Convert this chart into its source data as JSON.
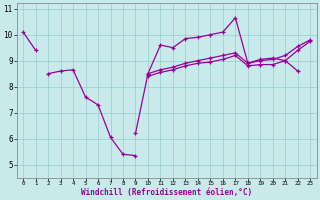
{
  "xlabel": "Windchill (Refroidissement éolien,°C)",
  "ylabel": "",
  "xlim": [
    -0.5,
    23.5
  ],
  "ylim": [
    4.5,
    11.2
  ],
  "yticks": [
    5,
    6,
    7,
    8,
    9,
    10,
    11
  ],
  "xticks": [
    0,
    1,
    2,
    3,
    4,
    5,
    6,
    7,
    8,
    9,
    10,
    11,
    12,
    13,
    14,
    15,
    16,
    17,
    18,
    19,
    20,
    21,
    22,
    23
  ],
  "bg_color": "#c8eaea",
  "line_color": "#990099",
  "grid_color": "#99cccc",
  "series": [
    {
      "x": [
        0,
        1
      ],
      "y": [
        10.1,
        9.4
      ]
    },
    {
      "x": [
        2,
        3,
        4,
        5,
        6,
        7,
        8,
        9
      ],
      "y": [
        8.5,
        8.6,
        8.65,
        7.6,
        7.3,
        6.05,
        5.4,
        5.35
      ]
    },
    {
      "x": [
        9,
        10,
        11,
        12,
        13,
        14,
        15,
        16,
        17,
        18,
        19,
        20,
        21,
        22
      ],
      "y": [
        6.2,
        8.5,
        9.6,
        9.5,
        9.85,
        9.9,
        10.0,
        10.1,
        10.65,
        8.9,
        9.05,
        9.1,
        9.0,
        8.6
      ]
    },
    {
      "x": [
        10,
        11,
        12,
        13,
        14,
        15,
        16,
        17,
        18,
        19,
        20,
        21,
        22,
        23
      ],
      "y": [
        8.5,
        8.65,
        8.75,
        8.9,
        9.0,
        9.1,
        9.2,
        9.3,
        8.9,
        9.0,
        9.05,
        9.2,
        9.55,
        9.8
      ]
    },
    {
      "x": [
        10,
        11,
        12,
        13,
        14,
        15,
        16,
        17,
        18,
        19,
        20,
        21,
        22,
        23
      ],
      "y": [
        8.4,
        8.55,
        8.65,
        8.8,
        8.9,
        8.95,
        9.05,
        9.2,
        8.8,
        8.85,
        8.85,
        9.0,
        9.4,
        9.75
      ]
    }
  ]
}
